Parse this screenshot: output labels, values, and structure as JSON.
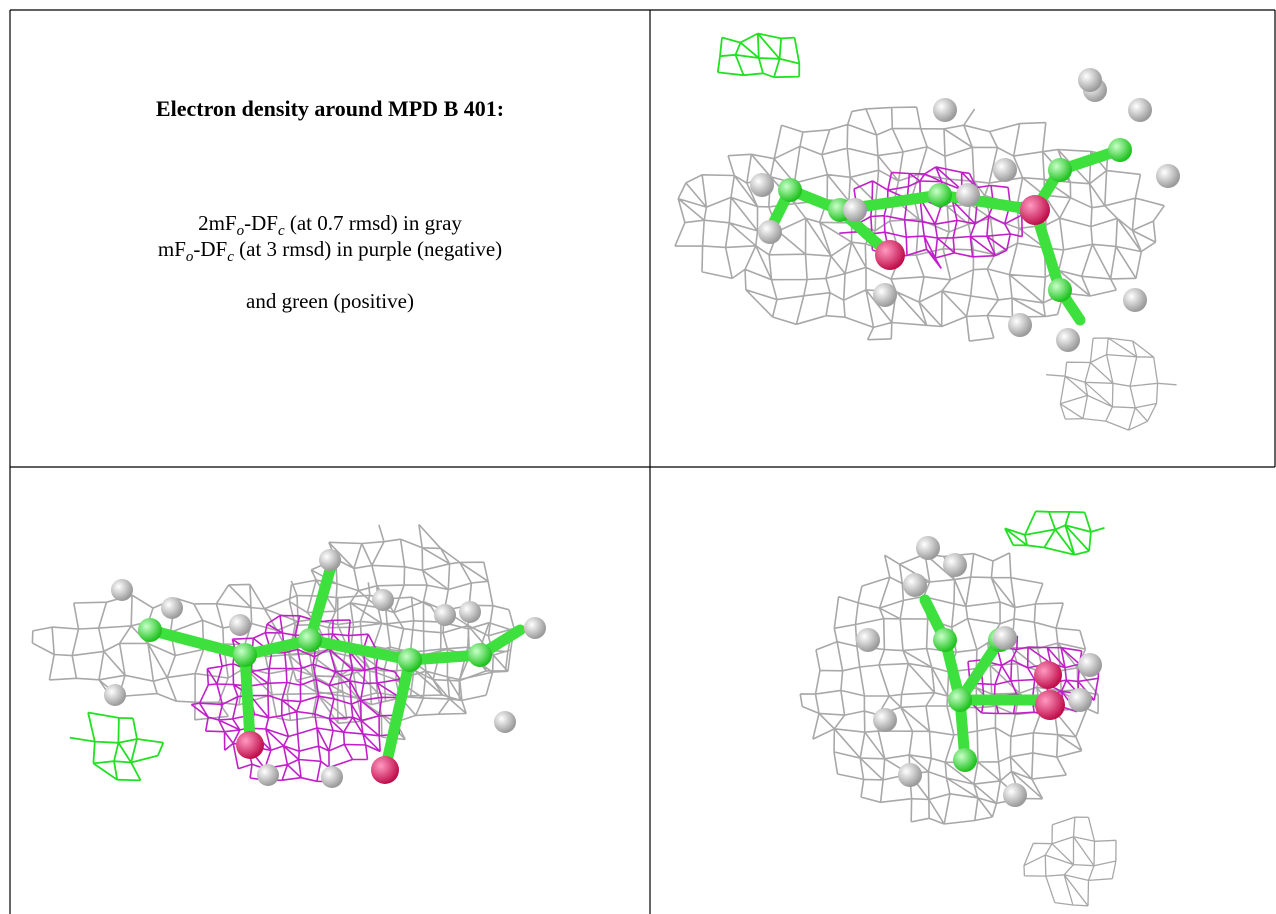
{
  "caption": {
    "title": "Electron density around MPD B 401:",
    "lines": [
      [
        "2mF",
        "o",
        "-DF",
        "c",
        " (at 0.7 rmsd) in gray"
      ],
      [
        "mF",
        "o",
        "-DF",
        "c",
        " (at 3 rmsd) in purple (negative)"
      ],
      [
        "and green (positive)"
      ]
    ]
  }
}
